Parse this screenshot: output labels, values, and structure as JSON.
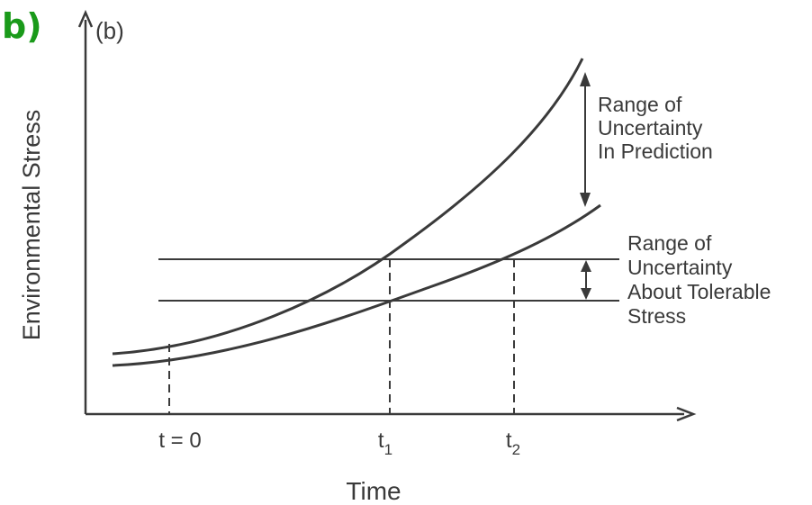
{
  "panel_letter": "b)",
  "panel_label": "(b)",
  "y_axis_label": "Environmental Stress",
  "x_axis_label": "Time",
  "ticks": {
    "t0": "t = 0",
    "t1_base": "t",
    "t1_sub": "1",
    "t2_base": "t",
    "t2_sub": "2"
  },
  "annotations": {
    "prediction": [
      "Range of",
      "Uncertainty",
      "In Prediction"
    ],
    "tolerable": [
      "Range of",
      "Uncertainty",
      "About Tolerable",
      "Stress"
    ]
  },
  "colors": {
    "panel_letter": "#1a9a1a",
    "ink": "#3a3a3a"
  }
}
